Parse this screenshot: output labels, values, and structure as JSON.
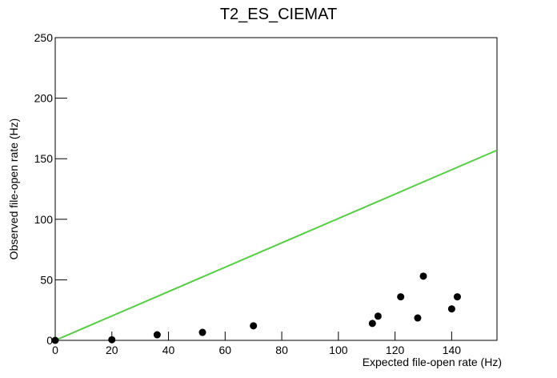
{
  "chart_data": {
    "type": "scatter",
    "title": "T2_ES_CIEMAT",
    "x_label": "Expected file-open rate (Hz)",
    "y_label": "Observed file-open rate (Hz)",
    "x": [
      0,
      20,
      36,
      52,
      70,
      112,
      114,
      122,
      128,
      130,
      140,
      142
    ],
    "values": [
      0,
      0.5,
      4.6,
      6.6,
      12,
      14,
      20,
      36,
      18.5,
      53,
      26,
      36
    ],
    "color": "#000000",
    "reference_line": {
      "x": [
        0,
        156
      ],
      "y": [
        0,
        157
      ],
      "color": "#55cc44"
    },
    "xlim": [
      0,
      156
    ],
    "ylim": [
      0,
      250
    ],
    "xticks": [
      0,
      20,
      40,
      60,
      80,
      100,
      120,
      140
    ],
    "yticks": [
      0,
      50,
      100,
      150,
      200,
      250
    ],
    "grid": false
  }
}
